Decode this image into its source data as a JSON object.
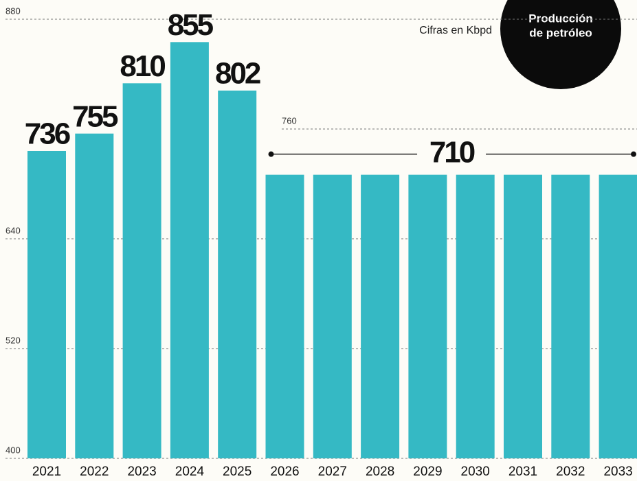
{
  "chart_data": {
    "type": "bar",
    "title": "Producción de petróleo",
    "subtitle": "Cifras en Kbpd",
    "categories": [
      "2021",
      "2022",
      "2023",
      "2024",
      "2025",
      "2026",
      "2027",
      "2028",
      "2029",
      "2030",
      "2031",
      "2032",
      "2033"
    ],
    "values": [
      736,
      755,
      810,
      855,
      802,
      710,
      710,
      710,
      710,
      710,
      710,
      710,
      710
    ],
    "color": "#35b9c4",
    "ylim": [
      400,
      880
    ],
    "yticks": [
      400,
      520,
      640,
      760,
      880
    ],
    "grid": true
  }
}
